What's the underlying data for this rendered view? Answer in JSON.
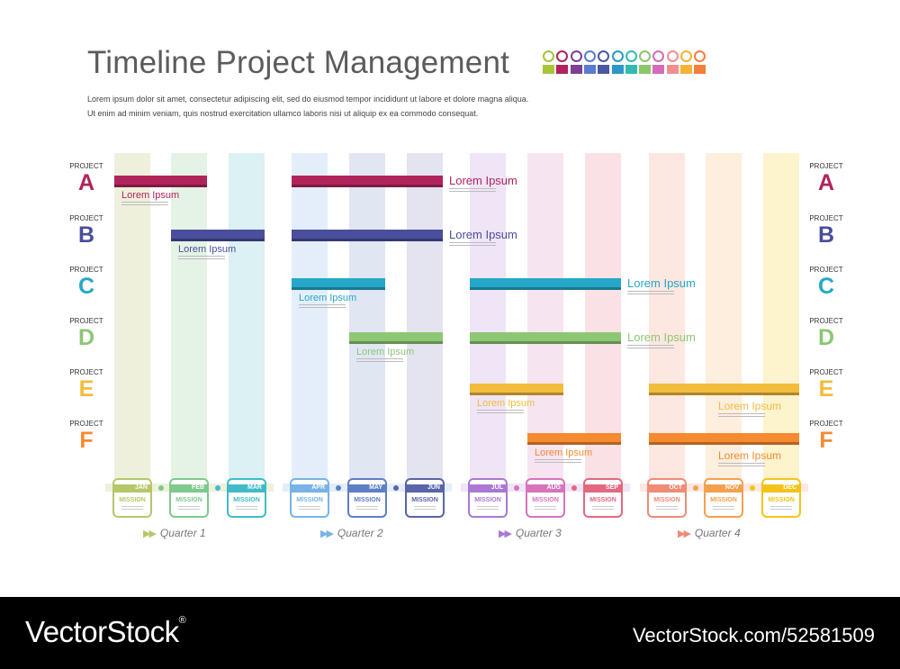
{
  "title": "Timeline Project Management",
  "intro": [
    "Lorem ipsum dolor sit amet, consectetur adipiscing elit, sed do eiusmod tempor incididunt ut labore et dolore magna aliqua.",
    "Ut enim ad minim veniam, quis nostrud exercitation ullamco laboris nisi ut aliquip ex ea commodo consequat."
  ],
  "palette": [
    "#a9c43b",
    "#b0245c",
    "#7d3f98",
    "#5a7ccf",
    "#4a57a3",
    "#2c98c9",
    "#35b9b3",
    "#8bc66e",
    "#d56cb8",
    "#ef8f8f",
    "#f2b336",
    "#f57e3b"
  ],
  "months": [
    {
      "name": "JAN",
      "color": "#b6c76a",
      "bg": "#eef0dc"
    },
    {
      "name": "FEB",
      "color": "#7ec98d",
      "bg": "#e4f3e6"
    },
    {
      "name": "MAR",
      "color": "#3fbcc7",
      "bg": "#dbf1f3"
    },
    {
      "name": "APR",
      "color": "#78b3e6",
      "bg": "#e3eefa"
    },
    {
      "name": "MAY",
      "color": "#5e7fc4",
      "bg": "#e1e6f3"
    },
    {
      "name": "JUN",
      "color": "#5a64a8",
      "bg": "#e3e4ef"
    },
    {
      "name": "JUL",
      "color": "#a979d4",
      "bg": "#efe5f7"
    },
    {
      "name": "AUG",
      "color": "#d774bc",
      "bg": "#f7e4f1"
    },
    {
      "name": "SEP",
      "color": "#e36880",
      "bg": "#fae1e5"
    },
    {
      "name": "OCT",
      "color": "#f08b75",
      "bg": "#fde7e1"
    },
    {
      "name": "NOV",
      "color": "#f5a04f",
      "bg": "#fdeedd"
    },
    {
      "name": "DEC",
      "color": "#f2c419",
      "bg": "#fdf3cd"
    }
  ],
  "mission_label": "MISSION",
  "quarters": [
    "Quarter 1",
    "Quarter 2",
    "Quarter 3",
    "Quarter 4"
  ],
  "quarter_colors": [
    "#b6c76a",
    "#78b3e6",
    "#a979d4",
    "#f08b75"
  ],
  "projects": [
    {
      "prefix": "PROJECT",
      "letter": "A",
      "color": "#b0245c",
      "bars": [
        {
          "start": 0,
          "end": 2,
          "label": "Lorem Ipsum",
          "label_pos": "below"
        },
        {
          "start": 3,
          "end": 6,
          "label": "Lorem Ipsum",
          "label_pos": "right"
        }
      ]
    },
    {
      "prefix": "PROJECT",
      "letter": "B",
      "color": "#4a4e9c",
      "bars": [
        {
          "start": 1,
          "end": 3,
          "label": "Lorem Ipsum",
          "label_pos": "below"
        },
        {
          "start": 3,
          "end": 6,
          "label": "Lorem Ipsum",
          "label_pos": "right"
        }
      ]
    },
    {
      "prefix": "PROJECT",
      "letter": "C",
      "color": "#25a7c9",
      "bars": [
        {
          "start": 3,
          "end": 5,
          "label": "Lorem Ipsum",
          "label_pos": "below"
        },
        {
          "start": 6,
          "end": 9,
          "label": "Lorem Ipsum",
          "label_pos": "right"
        }
      ]
    },
    {
      "prefix": "PROJECT",
      "letter": "D",
      "color": "#8dc774",
      "bars": [
        {
          "start": 4,
          "end": 6,
          "label": "Lorem Ipsum",
          "label_pos": "below"
        },
        {
          "start": 6,
          "end": 9,
          "label": "Lorem Ipsum",
          "label_pos": "right"
        }
      ]
    },
    {
      "prefix": "PROJECT",
      "letter": "E",
      "color": "#f2bc3c",
      "bars": [
        {
          "start": 6,
          "end": 8,
          "label": "Lorem Ipsum",
          "label_pos": "below"
        },
        {
          "start": 9,
          "end": 12,
          "label": "Lorem Ipsum",
          "label_pos": "below-right"
        }
      ]
    },
    {
      "prefix": "PROJECT",
      "letter": "F",
      "color": "#f68a30",
      "bars": [
        {
          "start": 7,
          "end": 9,
          "label": "Lorem Ipsum",
          "label_pos": "below"
        },
        {
          "start": 9,
          "end": 12,
          "label": "Lorem Ipsum",
          "label_pos": "below-right"
        }
      ]
    }
  ],
  "footer": {
    "brand": "VectorStock",
    "registered": "®",
    "stock_id": "VectorStock.com/52581509"
  }
}
